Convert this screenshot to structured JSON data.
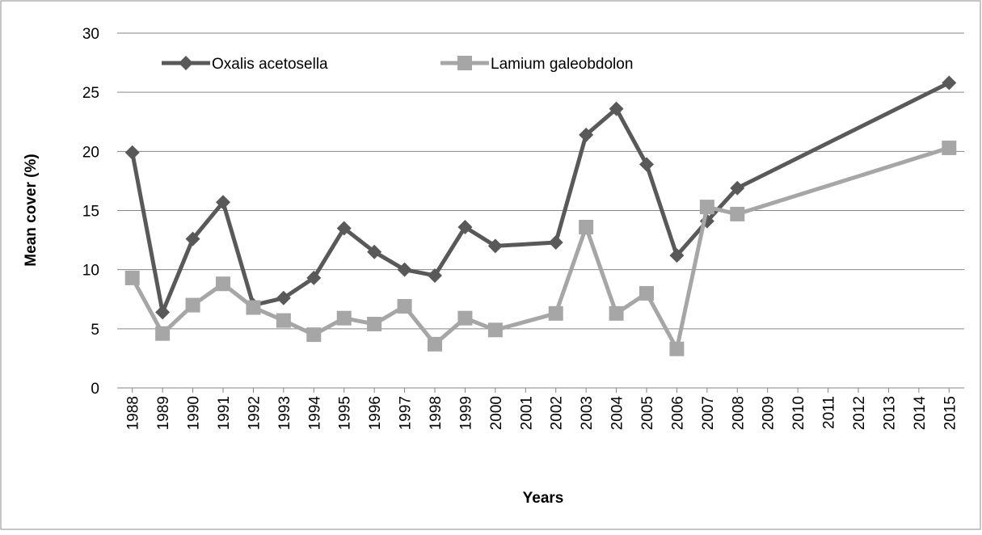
{
  "chart_data": {
    "type": "line",
    "x": [
      1988,
      1989,
      1990,
      1991,
      1992,
      1993,
      1994,
      1995,
      1996,
      1997,
      1998,
      1999,
      2000,
      2002,
      2003,
      2004,
      2005,
      2006,
      2007,
      2008,
      2015
    ],
    "series": [
      {
        "name": "Oxalis acetosella",
        "color": "#595959",
        "marker": "diamond",
        "values": [
          19.9,
          6.4,
          12.6,
          15.7,
          7.0,
          7.6,
          9.3,
          13.5,
          11.5,
          10.0,
          9.5,
          13.6,
          12.0,
          12.3,
          21.4,
          23.6,
          18.9,
          11.2,
          14.1,
          16.9,
          25.8
        ]
      },
      {
        "name": "Lamium galeobdolon",
        "color": "#a6a6a6",
        "marker": "square",
        "values": [
          9.3,
          4.6,
          7.0,
          8.8,
          6.8,
          5.7,
          4.5,
          5.9,
          5.4,
          6.9,
          3.7,
          5.9,
          4.9,
          6.3,
          13.6,
          6.3,
          8.0,
          3.3,
          15.3,
          14.7,
          20.3
        ]
      }
    ],
    "xlim": [
      1987.5,
      2015.5
    ],
    "xticks": [
      1988,
      1989,
      1990,
      1991,
      1992,
      1993,
      1994,
      1995,
      1996,
      1997,
      1998,
      1999,
      2000,
      2001,
      2002,
      2003,
      2004,
      2005,
      2006,
      2007,
      2008,
      2009,
      2010,
      2011,
      2012,
      2013,
      2014,
      2015
    ],
    "ylim": [
      0,
      30
    ],
    "yticks": [
      0,
      5,
      10,
      15,
      20,
      25,
      30
    ],
    "grid": true,
    "x_label": "Years",
    "y_label": "Mean cover (%)",
    "legend": "top-left"
  }
}
